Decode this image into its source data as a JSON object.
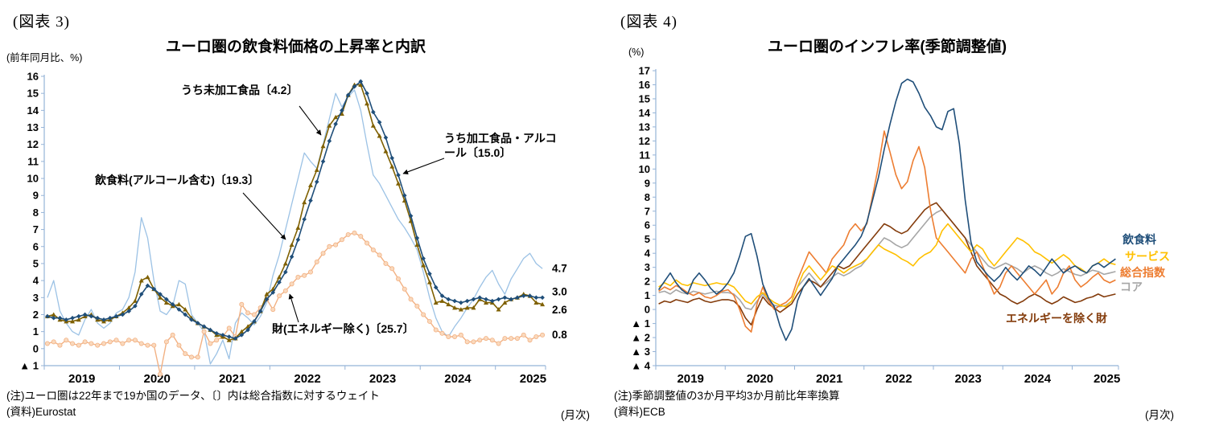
{
  "fig3": {
    "label": "(図表 3)",
    "title": "ユーロ圏の飲食料価格の上昇率と内訳",
    "y_unit": "(前年同月比、%)",
    "note1": "(注)ユーロ圏は22年まで19か国のデータ、〔〕内は総合指数に対するウェイト",
    "note2": "(資料)Eurostat",
    "freq": "(月次)"
  },
  "fig4": {
    "label": "(図表 4)",
    "title": "ユーロ圏のインフレ率(季節調整値)",
    "y_unit": "(%)",
    "note1": "(注)季節調整値の3か月平均3か月前比年率換算",
    "note2": "(資料)ECB",
    "freq": "(月次)"
  },
  "chart_data": [
    {
      "type": "line",
      "title": "ユーロ圏の飲食料価格の上昇率と内訳",
      "x_unit": "month",
      "x_range": "2019-01 to 2025-08",
      "x_tick_labels": [
        "2019",
        "2020",
        "2021",
        "2022",
        "2023",
        "2024",
        "2025"
      ],
      "ylim": [
        -1,
        16
      ],
      "y_tick_step": 1,
      "grid": false,
      "negative_format": "triangle",
      "series": [
        {
          "name": "うち未加工食品〔4.2〕",
          "color": "#9cc2e5",
          "marker": "none",
          "width": 1.3,
          "values": [
            3.0,
            4.0,
            2.2,
            1.5,
            1.0,
            0.8,
            1.7,
            2.3,
            1.5,
            1.2,
            1.5,
            2.1,
            2.3,
            3.0,
            4.5,
            7.7,
            6.5,
            4.0,
            2.2,
            2.0,
            2.5,
            4.0,
            3.8,
            2.0,
            1.5,
            1.0,
            -0.9,
            -0.3,
            0.5,
            -0.6,
            1.5,
            2.1,
            1.8,
            1.4,
            1.9,
            2.7,
            4.3,
            5.5,
            7.0,
            8.5,
            10.0,
            11.5,
            11.0,
            10.6,
            12.0,
            13.5,
            15.0,
            14.2,
            14.8,
            15.2,
            14.0,
            12.0,
            10.2,
            9.7,
            9.0,
            8.3,
            7.6,
            7.1,
            6.5,
            5.8,
            4.5,
            3.0,
            1.8,
            1.0,
            0.7,
            1.3,
            1.8,
            2.4,
            2.9,
            3.6,
            4.2,
            4.6,
            3.8,
            3.2,
            4.1,
            4.7,
            5.3,
            5.6,
            5.0,
            4.7
          ]
        },
        {
          "name": "うち加工食品・アルコール〔15.0〕",
          "color": "#1f4e79",
          "marker": "diamond",
          "width": 1.6,
          "values": [
            1.9,
            1.8,
            1.8,
            1.7,
            1.8,
            1.9,
            2.0,
            1.9,
            1.8,
            1.7,
            1.8,
            1.9,
            2.0,
            2.2,
            2.5,
            3.2,
            3.7,
            3.5,
            3.2,
            2.9,
            2.6,
            2.3,
            2.0,
            1.7,
            1.5,
            1.3,
            1.1,
            0.9,
            0.8,
            0.7,
            0.6,
            0.8,
            1.1,
            1.6,
            2.2,
            2.9,
            3.3,
            3.9,
            4.5,
            5.4,
            6.4,
            7.6,
            8.7,
            9.8,
            11.0,
            12.2,
            13.2,
            14.0,
            14.9,
            15.4,
            15.7,
            15.0,
            13.9,
            13.3,
            12.4,
            11.2,
            10.2,
            9.0,
            7.8,
            6.5,
            5.3,
            4.4,
            3.6,
            3.1,
            2.9,
            2.8,
            2.7,
            2.8,
            2.9,
            3.0,
            2.9,
            2.8,
            2.9,
            3.0,
            2.9,
            3.0,
            3.1,
            3.1,
            3.0,
            3.0
          ]
        },
        {
          "name": "飲食料(アルコール含む)〔19.3〕",
          "color": "#7f6000",
          "marker": "triangle",
          "width": 1.6,
          "values": [
            1.9,
            2.0,
            1.7,
            1.6,
            1.6,
            1.7,
            1.9,
            2.0,
            1.7,
            1.6,
            1.7,
            1.9,
            2.1,
            2.4,
            2.8,
            4.0,
            4.2,
            3.5,
            3.0,
            2.7,
            2.5,
            2.6,
            2.3,
            1.8,
            1.5,
            1.3,
            1.1,
            0.8,
            0.7,
            0.5,
            0.6,
            1.0,
            1.3,
            1.6,
            2.2,
            3.2,
            3.5,
            4.2,
            5.0,
            6.1,
            7.1,
            8.6,
            9.6,
            10.5,
            11.9,
            13.1,
            13.6,
            13.8,
            14.9,
            15.5,
            15.5,
            14.4,
            13.1,
            12.5,
            11.6,
            10.7,
            9.7,
            8.7,
            7.5,
            6.1,
            4.9,
            3.9,
            2.7,
            2.8,
            2.6,
            2.4,
            2.3,
            2.4,
            2.4,
            2.9,
            2.7,
            2.7,
            2.3,
            2.7,
            2.9,
            3.0,
            3.2,
            3.1,
            2.7,
            2.6
          ]
        },
        {
          "name": "財(エネルギー除く)〔25.7〕",
          "color": "#f2b183",
          "fill": "#fad9bd",
          "marker": "circle",
          "width": 1.4,
          "values": [
            0.3,
            0.4,
            0.2,
            0.5,
            0.3,
            0.2,
            0.4,
            0.3,
            0.2,
            0.3,
            0.4,
            0.5,
            0.3,
            0.5,
            0.5,
            0.3,
            0.2,
            0.2,
            -1.5,
            0.4,
            0.8,
            0.2,
            -0.3,
            -0.5,
            -0.5,
            1.0,
            0.3,
            0.5,
            0.7,
            1.2,
            0.7,
            2.6,
            2.1,
            2.0,
            2.4,
            2.9,
            2.3,
            3.1,
            3.4,
            3.8,
            4.2,
            4.3,
            4.5,
            5.1,
            5.6,
            6.0,
            6.1,
            6.4,
            6.7,
            6.8,
            6.6,
            6.2,
            5.8,
            5.5,
            5.0,
            4.7,
            4.1,
            3.5,
            2.9,
            2.5,
            2.0,
            1.6,
            1.1,
            0.9,
            0.7,
            0.7,
            0.8,
            0.4,
            0.4,
            0.5,
            0.6,
            0.5,
            0.3,
            0.6,
            0.6,
            0.6,
            0.8,
            0.5,
            0.7,
            0.8
          ]
        }
      ],
      "end_labels": [
        {
          "text": "4.7",
          "value": 4.7
        },
        {
          "text": "3.0",
          "value": 3.0
        },
        {
          "text": "2.6",
          "value": 2.6
        },
        {
          "text": "0.8",
          "value": 0.8
        }
      ]
    },
    {
      "type": "line",
      "title": "ユーロ圏のインフレ率(季節調整値)",
      "x_unit": "month",
      "x_range": "2019-01 to 2025-08",
      "x_tick_labels": [
        "2019",
        "2020",
        "2021",
        "2022",
        "2023",
        "2024",
        "2025"
      ],
      "ylim": [
        -4,
        17
      ],
      "y_tick_step": 1,
      "grid": false,
      "negative_format": "triangle",
      "series": [
        {
          "name": "飲食料",
          "color": "#1f4e79",
          "marker": "none",
          "width": 1.6,
          "values": [
            1.4,
            2.0,
            2.6,
            1.9,
            1.4,
            1.1,
            2.1,
            2.6,
            2.1,
            1.5,
            1.1,
            1.4,
            1.9,
            2.6,
            3.8,
            5.2,
            5.4,
            3.8,
            1.8,
            0.8,
            0.2,
            -1.2,
            -2.2,
            -1.4,
            0.6,
            1.6,
            2.2,
            1.6,
            1.0,
            1.6,
            2.2,
            3.1,
            3.6,
            4.1,
            4.6,
            5.2,
            6.2,
            7.8,
            9.4,
            11.4,
            13.2,
            14.8,
            16.1,
            16.4,
            16.2,
            15.4,
            14.4,
            13.8,
            13.0,
            12.8,
            14.1,
            14.3,
            11.8,
            7.8,
            4.8,
            3.4,
            2.9,
            2.4,
            2.0,
            2.4,
            3.0,
            2.5,
            2.1,
            2.6,
            3.1,
            2.8,
            2.4,
            3.0,
            3.6,
            3.1,
            2.6,
            2.9,
            3.1,
            2.8,
            2.6,
            3.1,
            3.3,
            3.0,
            3.3,
            3.6
          ]
        },
        {
          "name": "サービス",
          "color": "#ffc000",
          "marker": "none",
          "width": 1.6,
          "values": [
            1.6,
            1.9,
            1.7,
            2.1,
            1.8,
            1.7,
            1.9,
            1.8,
            1.7,
            1.8,
            1.9,
            1.8,
            1.8,
            1.6,
            1.1,
            0.6,
            0.4,
            0.9,
            1.2,
            0.8,
            0.5,
            0.3,
            0.2,
            0.6,
            1.6,
            2.6,
            3.1,
            2.6,
            2.1,
            2.6,
            3.1,
            2.9,
            2.6,
            2.9,
            3.1,
            3.3,
            3.6,
            4.1,
            4.6,
            4.3,
            4.1,
            3.9,
            3.6,
            3.4,
            3.1,
            3.6,
            3.9,
            4.1,
            4.6,
            5.6,
            6.1,
            5.6,
            5.1,
            4.6,
            4.1,
            4.6,
            4.3,
            3.6,
            3.1,
            3.6,
            4.1,
            4.6,
            5.1,
            4.9,
            4.6,
            4.1,
            3.9,
            3.6,
            3.3,
            3.6,
            3.9,
            3.6,
            3.1,
            2.9,
            2.6,
            3.1,
            3.3,
            3.6,
            3.3,
            3.2
          ]
        },
        {
          "name": "総合指数",
          "color": "#ed7d31",
          "marker": "none",
          "width": 1.6,
          "values": [
            1.3,
            1.6,
            1.4,
            1.7,
            1.5,
            1.2,
            1.0,
            1.2,
            0.9,
            0.8,
            1.0,
            1.3,
            1.4,
            1.0,
            0.0,
            -1.2,
            -1.6,
            0.4,
            1.6,
            0.6,
            0.0,
            0.3,
            0.5,
            0.9,
            2.1,
            3.1,
            4.1,
            3.6,
            3.1,
            2.6,
            3.6,
            4.1,
            4.6,
            5.6,
            6.1,
            5.6,
            6.1,
            8.1,
            10.2,
            12.7,
            11.2,
            9.6,
            8.6,
            9.1,
            10.6,
            11.6,
            10.1,
            7.1,
            5.1,
            4.6,
            4.1,
            3.6,
            3.1,
            2.6,
            3.6,
            4.1,
            3.1,
            2.1,
            1.1,
            1.6,
            2.6,
            3.1,
            2.6,
            2.1,
            1.6,
            1.1,
            1.6,
            2.1,
            1.1,
            1.6,
            2.6,
            3.1,
            2.1,
            1.6,
            1.9,
            2.3,
            2.6,
            2.1,
            1.9,
            2.1
          ]
        },
        {
          "name": "コア",
          "color": "#a6a6a6",
          "marker": "none",
          "width": 1.6,
          "values": [
            1.2,
            1.3,
            1.1,
            1.4,
            1.2,
            1.1,
            1.3,
            1.2,
            1.1,
            1.2,
            1.3,
            1.2,
            1.2,
            1.1,
            0.7,
            0.1,
            0.0,
            0.6,
            1.1,
            0.6,
            0.3,
            0.2,
            0.3,
            0.6,
            1.6,
            2.1,
            2.6,
            2.1,
            1.6,
            1.9,
            2.3,
            2.6,
            2.4,
            2.6,
            2.9,
            3.1,
            3.6,
            4.1,
            4.6,
            5.1,
            4.9,
            4.6,
            4.4,
            4.6,
            5.1,
            5.6,
            6.1,
            6.6,
            6.9,
            7.1,
            6.6,
            6.1,
            5.6,
            5.1,
            4.6,
            4.1,
            3.6,
            3.1,
            2.9,
            3.1,
            3.3,
            3.1,
            2.9,
            2.6,
            2.9,
            3.1,
            2.9,
            2.6,
            2.4,
            2.6,
            2.9,
            2.7,
            2.5,
            2.4,
            2.6,
            2.8,
            2.7,
            2.5,
            2.6,
            2.7
          ]
        },
        {
          "name": "エネルギーを除く財",
          "color": "#843c0c",
          "marker": "none",
          "width": 1.6,
          "values": [
            0.4,
            0.6,
            0.5,
            0.7,
            0.6,
            0.5,
            0.7,
            0.8,
            0.6,
            0.5,
            0.6,
            0.7,
            0.7,
            0.6,
            0.2,
            -0.6,
            -1.1,
            0.0,
            0.9,
            0.4,
            0.1,
            -0.2,
            0.1,
            0.4,
            1.1,
            1.6,
            2.1,
            1.9,
            1.6,
            2.1,
            2.6,
            3.1,
            2.9,
            3.1,
            3.6,
            4.1,
            4.6,
            5.1,
            5.6,
            6.1,
            5.9,
            5.6,
            5.4,
            5.6,
            6.1,
            6.6,
            7.1,
            7.4,
            7.6,
            7.1,
            6.6,
            6.1,
            5.6,
            5.1,
            4.1,
            3.1,
            2.6,
            2.1,
            1.6,
            1.1,
            0.9,
            0.6,
            0.4,
            0.6,
            0.9,
            1.1,
            0.9,
            0.6,
            0.4,
            0.6,
            0.9,
            0.7,
            0.5,
            0.6,
            0.8,
            0.9,
            1.1,
            0.9,
            1.0,
            1.1
          ]
        }
      ]
    }
  ]
}
